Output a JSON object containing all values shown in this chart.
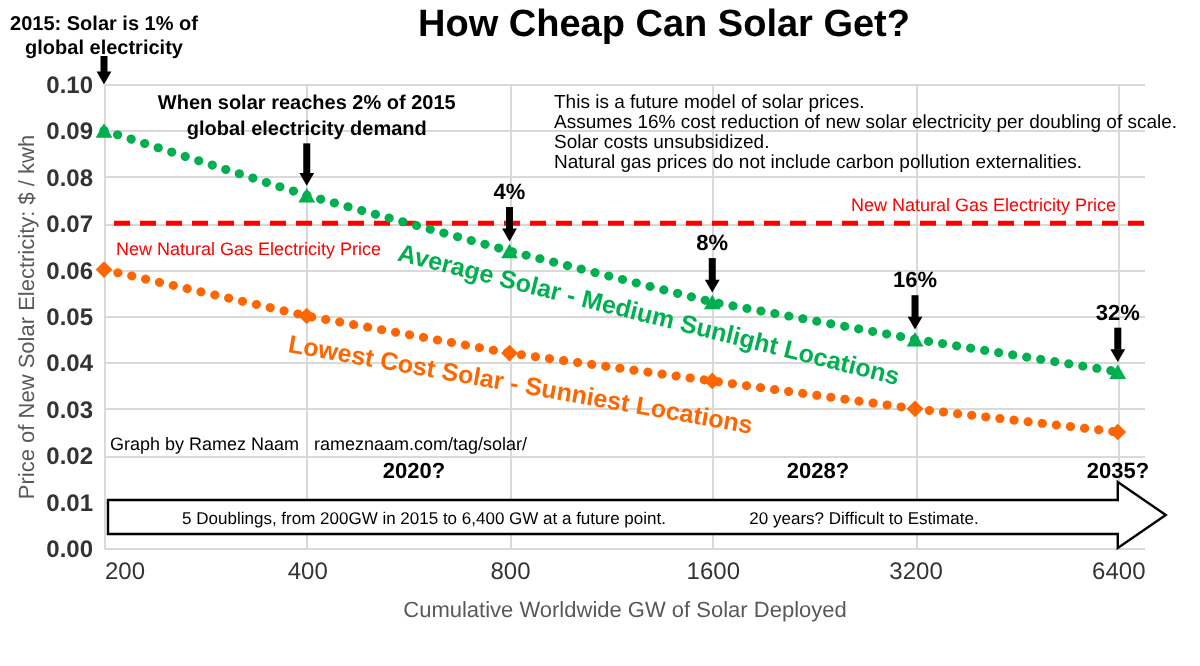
{
  "chart_data": {
    "type": "line",
    "title": "How Cheap Can Solar Get?",
    "xlabel": "Cumulative Worldwide GW of Solar Deployed",
    "ylabel": "Price of New Solar Electricity: $ / kwh",
    "x": [
      200,
      400,
      800,
      1600,
      3200,
      6400
    ],
    "series": [
      {
        "name": "Average Solar - Medium Sunlight Locations",
        "color": "#00b050",
        "marker": "triangle",
        "values": [
          0.09,
          0.076,
          0.064,
          0.053,
          0.045,
          0.038
        ]
      },
      {
        "name": "Lowest Cost Solar - Sunniest Locations",
        "color": "#ff6600",
        "marker": "diamond",
        "values": [
          0.06,
          0.05,
          0.042,
          0.036,
          0.03,
          0.025
        ]
      }
    ],
    "line_style": "dotted",
    "log": "x",
    "xlim": [
      200,
      7000
    ],
    "xticks": [
      200,
      400,
      800,
      1600,
      3200,
      6400
    ],
    "ylim": [
      0,
      0.1
    ],
    "yticks": [
      {
        "value": 0,
        "label": "0.00"
      },
      {
        "value": 0.01,
        "label": "0.01"
      },
      {
        "value": 0.02,
        "label": "0.02"
      },
      {
        "value": 0.03,
        "label": "0.03"
      },
      {
        "value": 0.04,
        "label": "0.04"
      },
      {
        "value": 0.05,
        "label": "0.05"
      },
      {
        "value": 0.06,
        "label": "0.06"
      },
      {
        "value": 0.07,
        "label": "0.07"
      },
      {
        "value": 0.08,
        "label": "0.08"
      },
      {
        "value": 0.09,
        "label": "0.09"
      },
      {
        "value": 0.1,
        "label": "0.10"
      }
    ],
    "grid": true,
    "ref_lines": [
      {
        "axis": "y",
        "value": 0.07,
        "label": "New Natural Gas Electricity Price",
        "color": "#ff0000",
        "line_style": "dashed"
      }
    ],
    "annotations": [
      "2015: Solar is 1% of\nglobal electricity",
      {
        "text": "When solar reaches 2% of 2015\nglobal electricity demand",
        "x": 400,
        "y": 0.076
      },
      {
        "text": "4%",
        "x": 800,
        "y": 0.064
      },
      {
        "text": "8%",
        "x": 1600,
        "y": 0.053
      },
      {
        "text": "16%",
        "x": 3200,
        "y": 0.045
      },
      {
        "text": "32%",
        "x": 6400,
        "y": 0.038
      },
      "This is a future model of solar prices.",
      "Assumes 16% cost reduction of new solar electricity per doubling of scale.",
      "Solar costs unsubsidized.",
      "Natural gas prices do not include carbon pollution externalities.",
      "Graph by Ramez Naam",
      "rameznaam.com/tag/solar/",
      "2020?",
      "2028?",
      "2035?",
      "5 Doublings, from 200GW in 2015 to 6,400 GW at a future point.",
      "20 years? Difficult to Estimate."
    ]
  }
}
